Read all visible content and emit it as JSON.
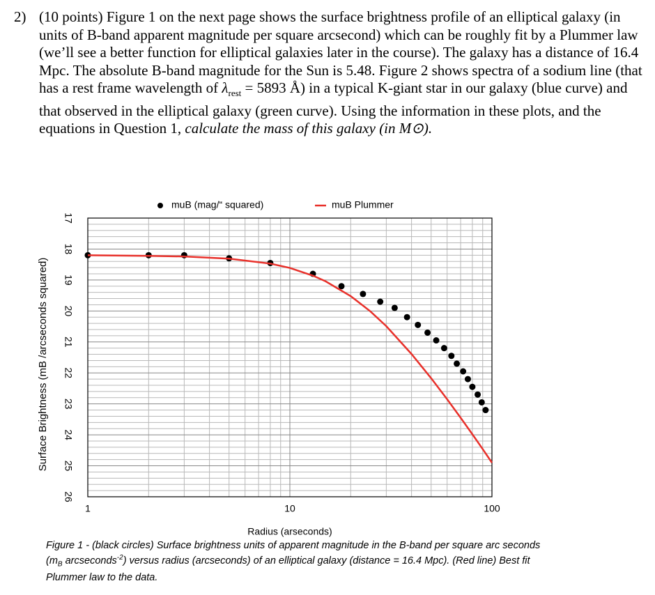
{
  "question": {
    "number": "2)",
    "text_before": "(10 points) Figure 1 on the next page shows the surface brightness profile of an elliptical galaxy (in units of B-band apparent magnitude per square arcsecond) which can be roughly fit by a Plummer law (we’ll see a better function for elliptical galaxies later in the course). The galaxy has a distance of 16.4 Mpc.  The absolute B-band magnitude for the Sun is 5.48. Figure 2 shows spectra of a sodium line (that has a rest frame wavelength of ",
    "lambda": "λ",
    "lambda_sub": "rest",
    "text_after": " = 5893 Å) in a typical K-giant star in our galaxy (blue curve) and that observed in the elliptical galaxy (green curve).  Using the information in these plots, and the equations in Question 1, ",
    "emphasis": "calculate the mass of this galaxy (in M⊙)."
  },
  "chart_data": {
    "type": "scatter",
    "x_label": "Radius (arseconds)",
    "y_label": "Surface Brightness (mB /arcseconds squared)",
    "x_log": true,
    "y_inverted": true,
    "grid": true,
    "minor_grid": true,
    "legend": "top",
    "xlim": [
      1,
      100
    ],
    "xticks": [
      1,
      10,
      100
    ],
    "ylim": [
      17,
      26
    ],
    "yticks": [
      17,
      18,
      19,
      20,
      21,
      22,
      23,
      24,
      25,
      26
    ],
    "series": [
      {
        "name": "muB (mag/“ squared)",
        "type": "scatter",
        "color": "#000000",
        "x": [
          1,
          2,
          3,
          5,
          8,
          13,
          18,
          23,
          28,
          33,
          38,
          43,
          48,
          53,
          58,
          63,
          67,
          72,
          76,
          80,
          85,
          89,
          93
        ],
        "values": [
          18.2,
          18.2,
          18.2,
          18.3,
          18.45,
          18.8,
          19.2,
          19.45,
          19.7,
          19.9,
          20.2,
          20.45,
          20.7,
          20.95,
          21.2,
          21.45,
          21.7,
          21.95,
          22.2,
          22.45,
          22.7,
          22.95,
          23.2
        ]
      },
      {
        "name": "muB Plummer",
        "type": "line",
        "color": "#e8302a",
        "x": [
          1,
          2,
          3,
          5,
          8,
          10,
          13,
          15,
          20,
          25,
          30,
          40,
          50,
          60,
          70,
          80,
          90,
          100
        ],
        "values": [
          18.2,
          18.22,
          18.24,
          18.31,
          18.47,
          18.61,
          18.86,
          19.04,
          19.52,
          20.01,
          20.49,
          21.39,
          22.17,
          22.85,
          23.45,
          23.98,
          24.46,
          24.9
        ]
      }
    ]
  },
  "caption": {
    "text_before": "Figure 1 - (black circles) Surface brightness units of apparent magnitude in the B-band per square arc seconds (m",
    "sub": "B",
    "mid": " arcseconds",
    "sup": "-2",
    "text_after": ") versus radius (arcseconds) of an elliptical galaxy (distance = 16.4 Mpc).  (Red line) Best fit Plummer law to the data."
  }
}
